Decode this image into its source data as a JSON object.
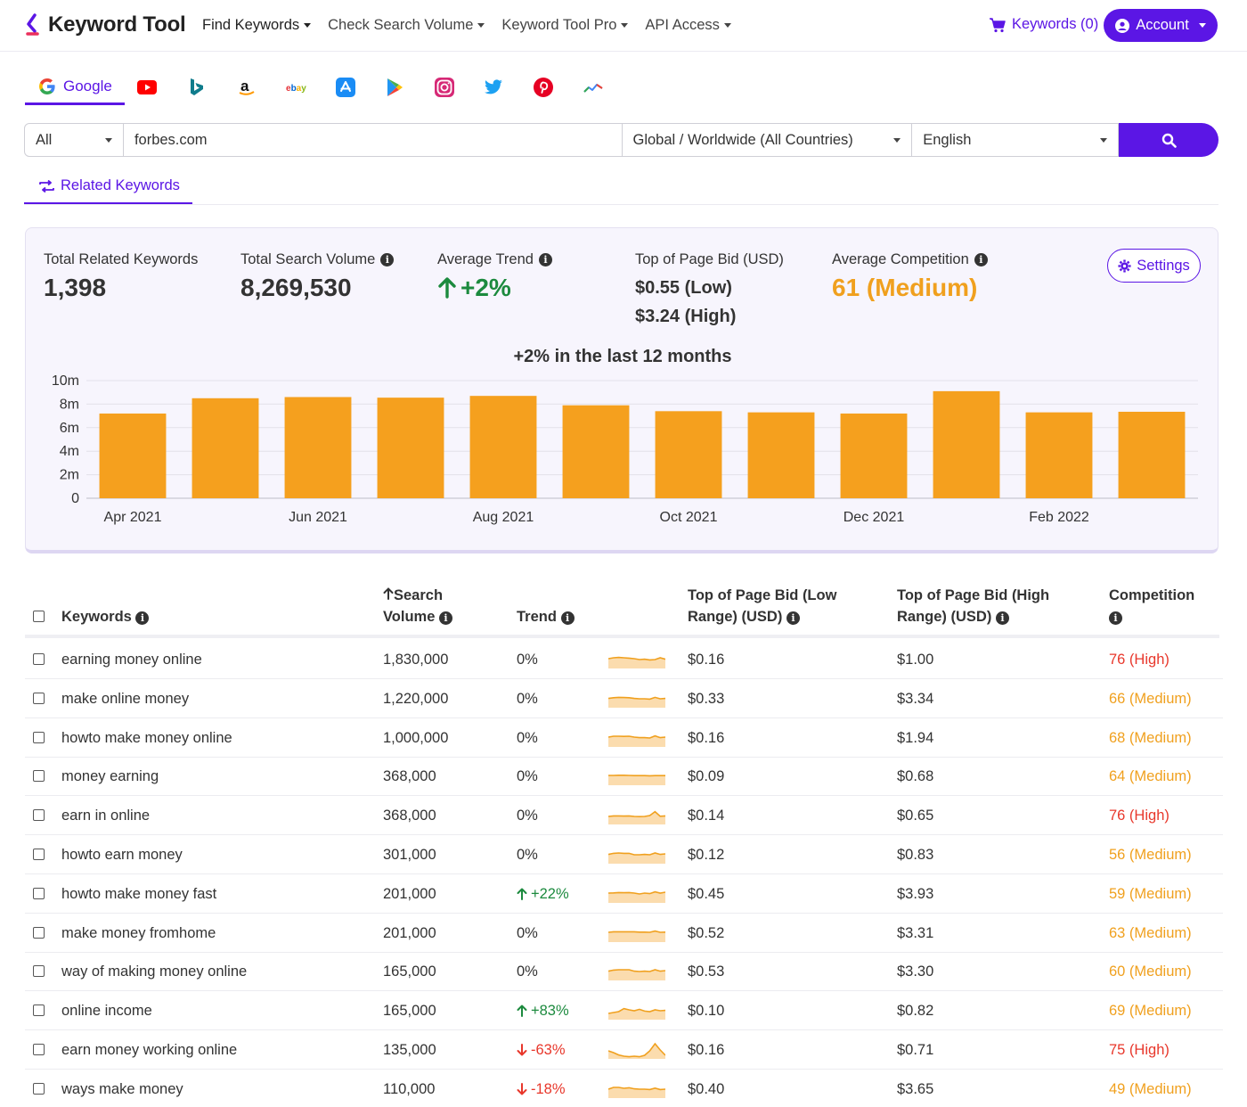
{
  "brand": {
    "name": "Keyword Tool",
    "accent": "#5b16e5",
    "bar_color": "#f5a01e"
  },
  "nav": {
    "items": [
      {
        "label": "Find Keywords"
      },
      {
        "label": "Check Search Volume"
      },
      {
        "label": "Keyword Tool Pro"
      },
      {
        "label": "API Access"
      }
    ],
    "cart_label": "Keywords (0)",
    "account_label": "Account"
  },
  "sources": {
    "active_label": "Google",
    "icons": [
      "google-icon",
      "youtube-icon",
      "bing-icon",
      "amazon-icon",
      "ebay-icon",
      "app-store-icon",
      "play-store-icon",
      "instagram-icon",
      "twitter-icon",
      "pinterest-icon",
      "trends-icon"
    ]
  },
  "search": {
    "type_value": "All",
    "query_value": "forbes.com",
    "location_value": "Global / Worldwide (All Countries)",
    "language_value": "English"
  },
  "tabs": {
    "related_label": "Related Keywords"
  },
  "stats": {
    "total_keywords_label": "Total Related Keywords",
    "total_keywords_value": "1,398",
    "total_volume_label": "Total Search Volume",
    "total_volume_value": "8,269,530",
    "avg_trend_label": "Average Trend",
    "avg_trend_value": "+2%",
    "bid_label": "Top of Page Bid (USD)",
    "bid_low": "$0.55 (Low)",
    "bid_high": "$3.24 (High)",
    "competition_label": "Average Competition",
    "competition_value": "61 (Medium)",
    "settings_label": "Settings"
  },
  "chart_data": {
    "type": "bar",
    "title": "+2% in the last 12 months",
    "categories": [
      "Apr 2021",
      "May 2021",
      "Jun 2021",
      "Jul 2021",
      "Aug 2021",
      "Sep 2021",
      "Oct 2021",
      "Nov 2021",
      "Dec 2021",
      "Jan 2022",
      "Feb 2022",
      "Mar 2022"
    ],
    "x_tick_labels": [
      "Apr 2021",
      "",
      "Jun 2021",
      "",
      "Aug 2021",
      "",
      "Oct 2021",
      "",
      "Dec 2021",
      "",
      "Feb 2022",
      ""
    ],
    "values": [
      7200000,
      8500000,
      8600000,
      8550000,
      8700000,
      7900000,
      7400000,
      7300000,
      7200000,
      9100000,
      7300000,
      7350000
    ],
    "y_ticks": [
      "0",
      "2m",
      "4m",
      "6m",
      "8m",
      "10m"
    ],
    "ylim": [
      0,
      10000000
    ],
    "grid": true
  },
  "table": {
    "headers": {
      "keywords": "Keywords",
      "volume_line1": "Search",
      "volume_line2": "Volume",
      "trend": "Trend",
      "bid_low_line1": "Top of Page Bid (Low",
      "bid_low_line2": "Range) (USD)",
      "bid_high_line1": "Top of Page Bid (High",
      "bid_high_line2": "Range) (USD)",
      "competition": "Competition"
    },
    "rows": [
      {
        "keyword": "earning money online",
        "volume": "1,830,000",
        "trend": "0%",
        "trend_dir": "flat",
        "bid_low": "$0.16",
        "bid_high": "$1.00",
        "competition": "76 (High)",
        "level": "high",
        "spark": [
          0.55,
          0.6,
          0.62,
          0.6,
          0.58,
          0.55,
          0.5,
          0.52,
          0.48,
          0.5,
          0.6,
          0.52
        ]
      },
      {
        "keyword": "make online money",
        "volume": "1,220,000",
        "trend": "0%",
        "trend_dir": "flat",
        "bid_low": "$0.33",
        "bid_high": "$3.34",
        "competition": "66 (Medium)",
        "level": "medium",
        "spark": [
          0.52,
          0.56,
          0.58,
          0.57,
          0.56,
          0.52,
          0.5,
          0.5,
          0.48,
          0.58,
          0.5,
          0.52
        ]
      },
      {
        "keyword": "howto make money online",
        "volume": "1,000,000",
        "trend": "0%",
        "trend_dir": "flat",
        "bid_low": "$0.16",
        "bid_high": "$1.94",
        "competition": "68 (Medium)",
        "level": "medium",
        "spark": [
          0.55,
          0.6,
          0.6,
          0.59,
          0.6,
          0.55,
          0.52,
          0.52,
          0.5,
          0.62,
          0.52,
          0.55
        ]
      },
      {
        "keyword": "money earning",
        "volume": "368,000",
        "trend": "0%",
        "trend_dir": "flat",
        "bid_low": "$0.09",
        "bid_high": "$0.68",
        "competition": "64 (Medium)",
        "level": "medium",
        "spark": [
          0.55,
          0.55,
          0.56,
          0.56,
          0.55,
          0.54,
          0.54,
          0.54,
          0.53,
          0.54,
          0.54,
          0.54
        ]
      },
      {
        "keyword": "earn in online",
        "volume": "368,000",
        "trend": "0%",
        "trend_dir": "flat",
        "bid_low": "$0.14",
        "bid_high": "$0.65",
        "competition": "76 (High)",
        "level": "high",
        "spark": [
          0.45,
          0.48,
          0.48,
          0.47,
          0.48,
          0.45,
          0.44,
          0.45,
          0.5,
          0.72,
          0.46,
          0.48
        ]
      },
      {
        "keyword": "howto earn money",
        "volume": "301,000",
        "trend": "0%",
        "trend_dir": "flat",
        "bid_low": "$0.12",
        "bid_high": "$0.83",
        "competition": "56 (Medium)",
        "level": "medium",
        "spark": [
          0.52,
          0.58,
          0.6,
          0.58,
          0.58,
          0.5,
          0.5,
          0.52,
          0.5,
          0.6,
          0.52,
          0.55
        ]
      },
      {
        "keyword": "howto make money fast",
        "volume": "201,000",
        "trend": "+22%",
        "trend_dir": "up",
        "bid_low": "$0.45",
        "bid_high": "$3.93",
        "competition": "59 (Medium)",
        "level": "medium",
        "spark": [
          0.55,
          0.56,
          0.58,
          0.57,
          0.58,
          0.55,
          0.5,
          0.55,
          0.52,
          0.62,
          0.55,
          0.6
        ]
      },
      {
        "keyword": "make money fromhome",
        "volume": "201,000",
        "trend": "0%",
        "trend_dir": "flat",
        "bid_low": "$0.52",
        "bid_high": "$3.31",
        "competition": "63 (Medium)",
        "level": "medium",
        "spark": [
          0.55,
          0.58,
          0.58,
          0.58,
          0.58,
          0.58,
          0.56,
          0.56,
          0.55,
          0.62,
          0.55,
          0.56
        ]
      },
      {
        "keyword": "way of making money online",
        "volume": "165,000",
        "trend": "0%",
        "trend_dir": "flat",
        "bid_low": "$0.53",
        "bid_high": "$3.30",
        "competition": "60 (Medium)",
        "level": "medium",
        "spark": [
          0.52,
          0.58,
          0.6,
          0.6,
          0.6,
          0.52,
          0.5,
          0.52,
          0.5,
          0.6,
          0.52,
          0.55
        ]
      },
      {
        "keyword": "online income",
        "volume": "165,000",
        "trend": "+83%",
        "trend_dir": "up",
        "bid_low": "$0.10",
        "bid_high": "$0.82",
        "competition": "69 (Medium)",
        "level": "medium",
        "spark": [
          0.35,
          0.4,
          0.45,
          0.62,
          0.55,
          0.5,
          0.58,
          0.48,
          0.45,
          0.55,
          0.5,
          0.52
        ]
      },
      {
        "keyword": "earn money working online",
        "volume": "135,000",
        "trend": "-63%",
        "trend_dir": "down",
        "bid_low": "$0.16",
        "bid_high": "$0.71",
        "competition": "75 (High)",
        "level": "high",
        "spark": [
          0.45,
          0.35,
          0.22,
          0.15,
          0.12,
          0.15,
          0.12,
          0.2,
          0.45,
          0.85,
          0.5,
          0.2
        ]
      },
      {
        "keyword": "ways make money",
        "volume": "110,000",
        "trend": "-18%",
        "trend_dir": "down",
        "bid_low": "$0.40",
        "bid_high": "$3.65",
        "competition": "49 (Medium)",
        "level": "medium",
        "spark": [
          0.5,
          0.6,
          0.6,
          0.55,
          0.58,
          0.52,
          0.5,
          0.5,
          0.48,
          0.56,
          0.48,
          0.5
        ]
      }
    ]
  }
}
